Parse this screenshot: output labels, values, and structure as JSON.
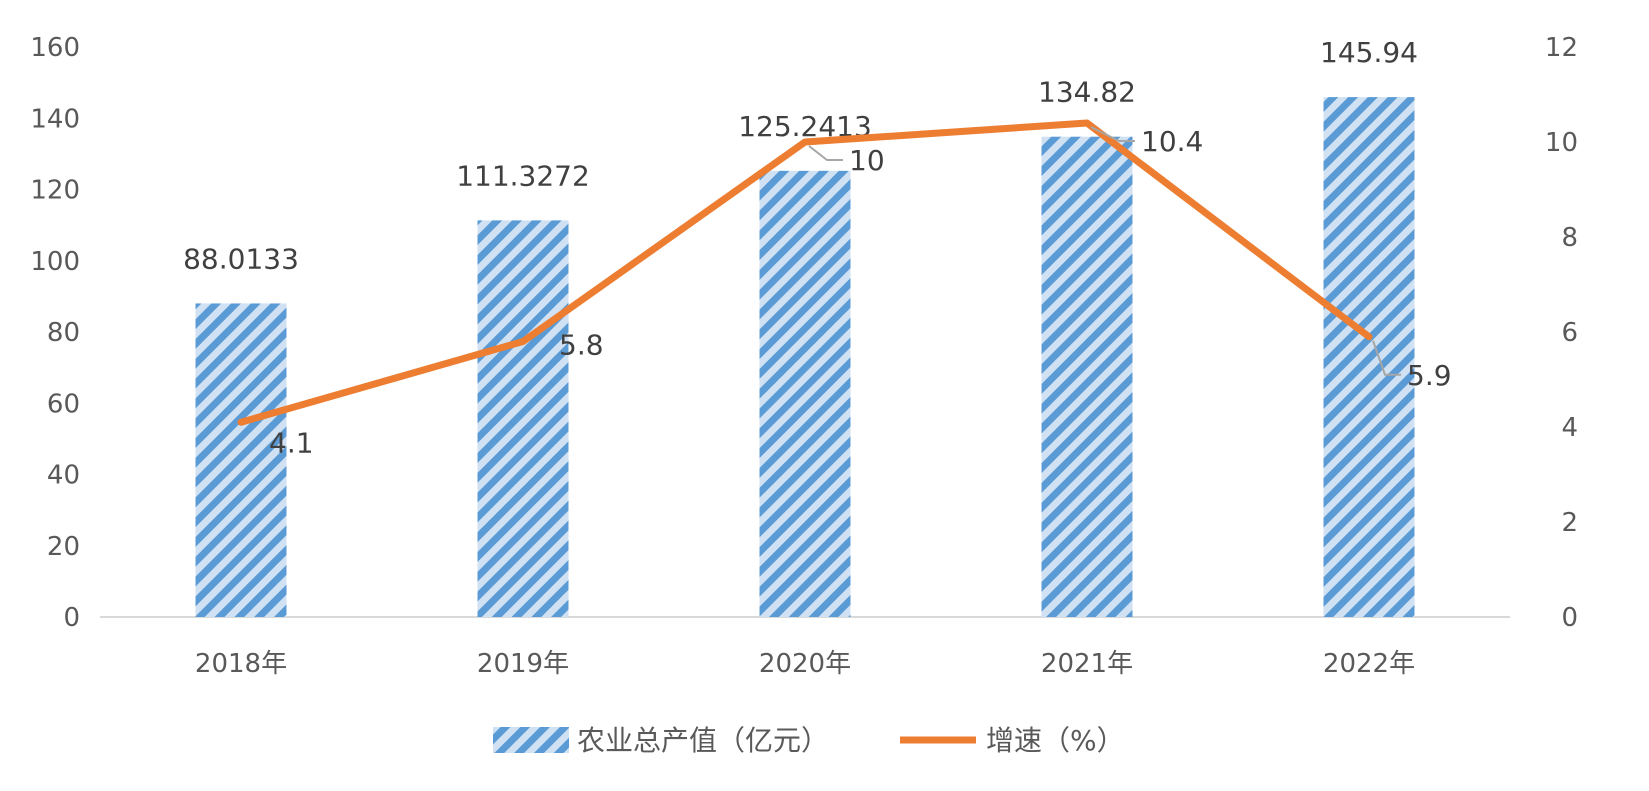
{
  "chart_data": {
    "type": "bar",
    "categories": [
      "2018年",
      "2019年",
      "2020年",
      "2021年",
      "2022年"
    ],
    "series": [
      {
        "name": "农业总产值（亿元）",
        "type": "bar",
        "axis": "left",
        "values": [
          88.0133,
          111.3272,
          125.2413,
          134.82,
          145.94
        ],
        "labels": [
          "88.0133",
          "111.3272",
          "125.2413",
          "134.82",
          "145.94"
        ],
        "color": "#5b9bd5",
        "pattern": "diagonal-stripes"
      },
      {
        "name": "增速（%）",
        "type": "line",
        "axis": "right",
        "values": [
          4.1,
          5.8,
          10,
          10.4,
          5.9
        ],
        "labels": [
          "4.1",
          "5.8",
          "10",
          "10.4",
          "5.9"
        ],
        "color": "#ed7d31"
      }
    ],
    "y_left": {
      "ylim": [
        0,
        160
      ],
      "ticks": [
        "0",
        "20",
        "40",
        "60",
        "80",
        "100",
        "120",
        "140",
        "160"
      ]
    },
    "y_right": {
      "ylim": [
        0,
        12
      ],
      "ticks": [
        "0",
        "2",
        "4",
        "6",
        "8",
        "10",
        "12"
      ]
    },
    "title": "",
    "xlabel": "",
    "ylabel": "",
    "grid": false,
    "legend": "bottom-center"
  }
}
